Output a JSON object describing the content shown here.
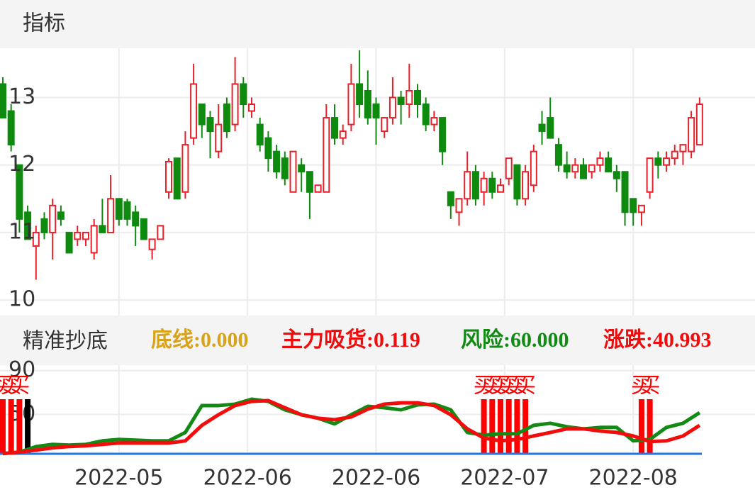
{
  "header": {
    "title": "指标"
  },
  "chart_data": [
    {
      "type": "candlestick",
      "up_color": "#e8202a",
      "down_color": "#0e8a0e",
      "grid": true,
      "ylim": [
        9.77,
        13.73
      ],
      "yticks": [
        10,
        11,
        12,
        13
      ],
      "xlim": [
        -0.34,
        90.68
      ],
      "xticks": [
        {
          "value": 14,
          "label": "2022-05"
        },
        {
          "value": 29.5,
          "label": "2022-06"
        },
        {
          "value": 45,
          "label": "2022-06"
        },
        {
          "value": 60.5,
          "label": "2022-07"
        },
        {
          "value": 76,
          "label": "2022-08"
        }
      ],
      "candles": [
        [
          13.2,
          13.3,
          12.7,
          12.7
        ],
        [
          12.8,
          12.9,
          12.2,
          12.3
        ],
        [
          12.0,
          12.0,
          11.0,
          11.2
        ],
        [
          11.3,
          11.4,
          10.9,
          10.9
        ],
        [
          10.8,
          11.1,
          10.3,
          11.0
        ],
        [
          11.2,
          11.3,
          10.9,
          11.0
        ],
        [
          11.0,
          11.5,
          10.6,
          11.4
        ],
        [
          11.3,
          11.4,
          11.1,
          11.2
        ],
        [
          11.0,
          11.0,
          10.7,
          10.7
        ],
        [
          10.9,
          11.1,
          10.8,
          11.0
        ],
        [
          10.9,
          11.0,
          10.8,
          11.0
        ],
        [
          10.7,
          11.2,
          10.6,
          11.1
        ],
        [
          11.1,
          11.5,
          11.0,
          11.0
        ],
        [
          11.0,
          11.85,
          11.0,
          11.5
        ],
        [
          11.5,
          11.5,
          11.1,
          11.2
        ],
        [
          11.45,
          11.5,
          11.1,
          11.2
        ],
        [
          11.3,
          11.4,
          10.8,
          11.1
        ],
        [
          11.2,
          11.2,
          10.9,
          10.9
        ],
        [
          10.75,
          10.9,
          10.6,
          10.9
        ],
        [
          10.9,
          11.1,
          10.9,
          11.1
        ],
        [
          11.6,
          12.1,
          11.5,
          12.05
        ],
        [
          12.1,
          12.1,
          11.5,
          11.5
        ],
        [
          11.6,
          12.5,
          11.5,
          12.3
        ],
        [
          12.4,
          13.5,
          12.3,
          13.2
        ],
        [
          12.9,
          12.9,
          12.4,
          12.6
        ],
        [
          12.7,
          12.8,
          12.1,
          12.5
        ],
        [
          12.2,
          12.9,
          12.1,
          12.6
        ],
        [
          12.9,
          13.0,
          12.4,
          12.5
        ],
        [
          12.6,
          13.6,
          12.5,
          13.2
        ],
        [
          13.2,
          13.3,
          12.7,
          12.9
        ],
        [
          12.8,
          13.0,
          12.7,
          12.9
        ],
        [
          12.6,
          12.7,
          12.2,
          12.3
        ],
        [
          12.4,
          12.5,
          11.9,
          12.1
        ],
        [
          12.2,
          12.3,
          11.8,
          11.9
        ],
        [
          12.1,
          12.2,
          11.7,
          11.8
        ],
        [
          11.6,
          12.2,
          11.6,
          12.2
        ],
        [
          12.0,
          12.1,
          11.6,
          11.9
        ],
        [
          11.9,
          11.9,
          11.2,
          11.6
        ],
        [
          11.6,
          11.7,
          11.6,
          11.7
        ],
        [
          11.6,
          12.9,
          11.6,
          12.7
        ],
        [
          12.7,
          12.9,
          12.3,
          12.4
        ],
        [
          12.4,
          12.6,
          12.3,
          12.5
        ],
        [
          12.6,
          13.5,
          12.5,
          13.2
        ],
        [
          13.2,
          13.7,
          12.7,
          12.9
        ],
        [
          13.1,
          13.4,
          12.6,
          12.7
        ],
        [
          12.9,
          13.0,
          12.3,
          12.7
        ],
        [
          12.5,
          12.7,
          12.4,
          12.7
        ],
        [
          12.7,
          13.3,
          12.6,
          13.0
        ],
        [
          13.0,
          13.1,
          12.6,
          12.9
        ],
        [
          12.9,
          13.5,
          12.7,
          13.1
        ],
        [
          13.1,
          13.2,
          12.7,
          12.9
        ],
        [
          12.9,
          13.0,
          12.5,
          12.6
        ],
        [
          12.6,
          12.8,
          12.5,
          12.7
        ],
        [
          12.7,
          12.7,
          12.0,
          12.2
        ],
        [
          11.6,
          11.6,
          11.2,
          11.4
        ],
        [
          11.3,
          11.5,
          11.1,
          11.5
        ],
        [
          11.5,
          12.2,
          11.4,
          11.9
        ],
        [
          11.9,
          12.0,
          11.4,
          11.5
        ],
        [
          11.6,
          11.9,
          11.4,
          11.8
        ],
        [
          11.8,
          11.9,
          11.5,
          11.6
        ],
        [
          11.6,
          11.8,
          11.6,
          11.7
        ],
        [
          11.8,
          12.1,
          11.7,
          12.1
        ],
        [
          12.0,
          12.0,
          11.4,
          11.5
        ],
        [
          11.5,
          12.0,
          11.4,
          11.9
        ],
        [
          11.7,
          12.3,
          11.6,
          12.2
        ],
        [
          12.6,
          12.8,
          12.3,
          12.5
        ],
        [
          12.7,
          13.0,
          12.4,
          12.4
        ],
        [
          12.3,
          12.4,
          11.9,
          12.0
        ],
        [
          12.0,
          12.2,
          11.8,
          11.9
        ],
        [
          11.9,
          12.1,
          11.8,
          12.0
        ],
        [
          12.0,
          12.1,
          11.8,
          11.8
        ],
        [
          11.9,
          12.0,
          11.8,
          12.0
        ],
        [
          12.0,
          12.2,
          11.9,
          12.1
        ],
        [
          12.1,
          12.2,
          11.9,
          11.9
        ],
        [
          11.9,
          12.0,
          11.6,
          11.8
        ],
        [
          11.9,
          11.9,
          11.1,
          11.3
        ],
        [
          11.5,
          11.5,
          11.1,
          11.3
        ],
        [
          11.3,
          11.4,
          11.1,
          11.4
        ],
        [
          11.6,
          12.1,
          11.5,
          12.1
        ],
        [
          12.1,
          12.2,
          11.8,
          12.0
        ],
        [
          12.0,
          12.2,
          11.9,
          12.1
        ],
        [
          12.1,
          12.3,
          12.0,
          12.2
        ],
        [
          12.2,
          12.3,
          12.0,
          12.3
        ],
        [
          12.2,
          12.8,
          12.1,
          12.7
        ],
        [
          12.3,
          13.0,
          12.3,
          12.9
        ]
      ]
    },
    {
      "type": "line",
      "title": "精准抄底",
      "ylim": [
        14,
        95
      ],
      "yticks": [
        50,
        90
      ],
      "xlim": [
        -0.34,
        90.68
      ],
      "x": [
        0,
        2,
        4,
        6,
        8,
        10,
        12,
        14,
        16,
        18,
        20,
        22,
        24,
        26,
        28,
        30,
        32,
        34,
        36,
        38,
        40,
        42,
        44,
        46,
        48,
        50,
        52,
        54,
        56,
        58,
        60,
        62,
        64,
        66,
        68,
        70,
        72,
        74,
        76,
        78,
        80,
        82,
        84
      ],
      "series": [
        {
          "color": "#138a13",
          "values": [
            14.2,
            15.5,
            20.6,
            22.6,
            21.9,
            22.6,
            25.8,
            27.1,
            26.5,
            25.8,
            25.8,
            33.5,
            58.1,
            58.1,
            59.4,
            63.9,
            61.9,
            54.2,
            49.7,
            46.5,
            41.3,
            49.7,
            57.4,
            56.1,
            54.2,
            58.7,
            59.4,
            54.2,
            33.5,
            31.0,
            32.3,
            32.3,
            40.0,
            41.9,
            38.7,
            36.8,
            38.1,
            38.1,
            25.8,
            27.1,
            38.1,
            41.9,
            51.6
          ]
        },
        {
          "color": "#f20c0c",
          "values": [
            14.2,
            15.5,
            17.4,
            19.4,
            20.6,
            21.3,
            22.6,
            23.9,
            23.9,
            23.9,
            23.9,
            25.8,
            40.0,
            49.7,
            58.1,
            61.9,
            62.6,
            56.1,
            49.7,
            46.5,
            45.2,
            47.7,
            54.8,
            59.4,
            60.6,
            60.6,
            58.1,
            49.7,
            36.8,
            28.4,
            25.8,
            27.1,
            30.3,
            33.5,
            36.8,
            36.8,
            34.8,
            33.5,
            30.3,
            25.2,
            25.8,
            30.3,
            40.0
          ]
        }
      ],
      "indicators": [
        {
          "name": "底线",
          "color": "#d9a21b",
          "value": 0,
          "value_label": ":0.000"
        },
        {
          "name": "主力吸货",
          "color": "#ee0c0c",
          "value": 0.119,
          "value_label": ":0.119"
        },
        {
          "name": "风险",
          "color": "#138a13",
          "value": 60,
          "value_label": ":60.000"
        },
        {
          "name": "涨跌",
          "color": "#ee0c0c",
          "value": 40.993,
          "value_label": ":40.993"
        }
      ],
      "signals": {
        "label": "买",
        "color": "#ff0000",
        "indices": [
          0,
          1,
          2,
          58,
          59,
          60,
          61,
          62,
          63,
          77,
          78
        ]
      },
      "marks": {
        "color": "#000000",
        "indices": [
          3
        ]
      }
    }
  ]
}
